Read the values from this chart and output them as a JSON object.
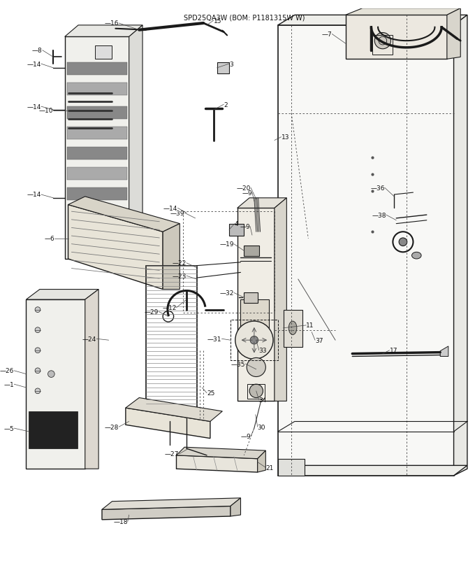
{
  "title": "SPD25QA3W (BOM: P1181315W W)",
  "bg_color": "#f5f5f0",
  "fig_width": 6.8,
  "fig_height": 8.03,
  "dpi": 100,
  "font_size": 7.0,
  "label_color": "#111111",
  "lc": "#1a1a1a",
  "lw_main": 1.0,
  "lw_thin": 0.6,
  "lw_thick": 1.8
}
